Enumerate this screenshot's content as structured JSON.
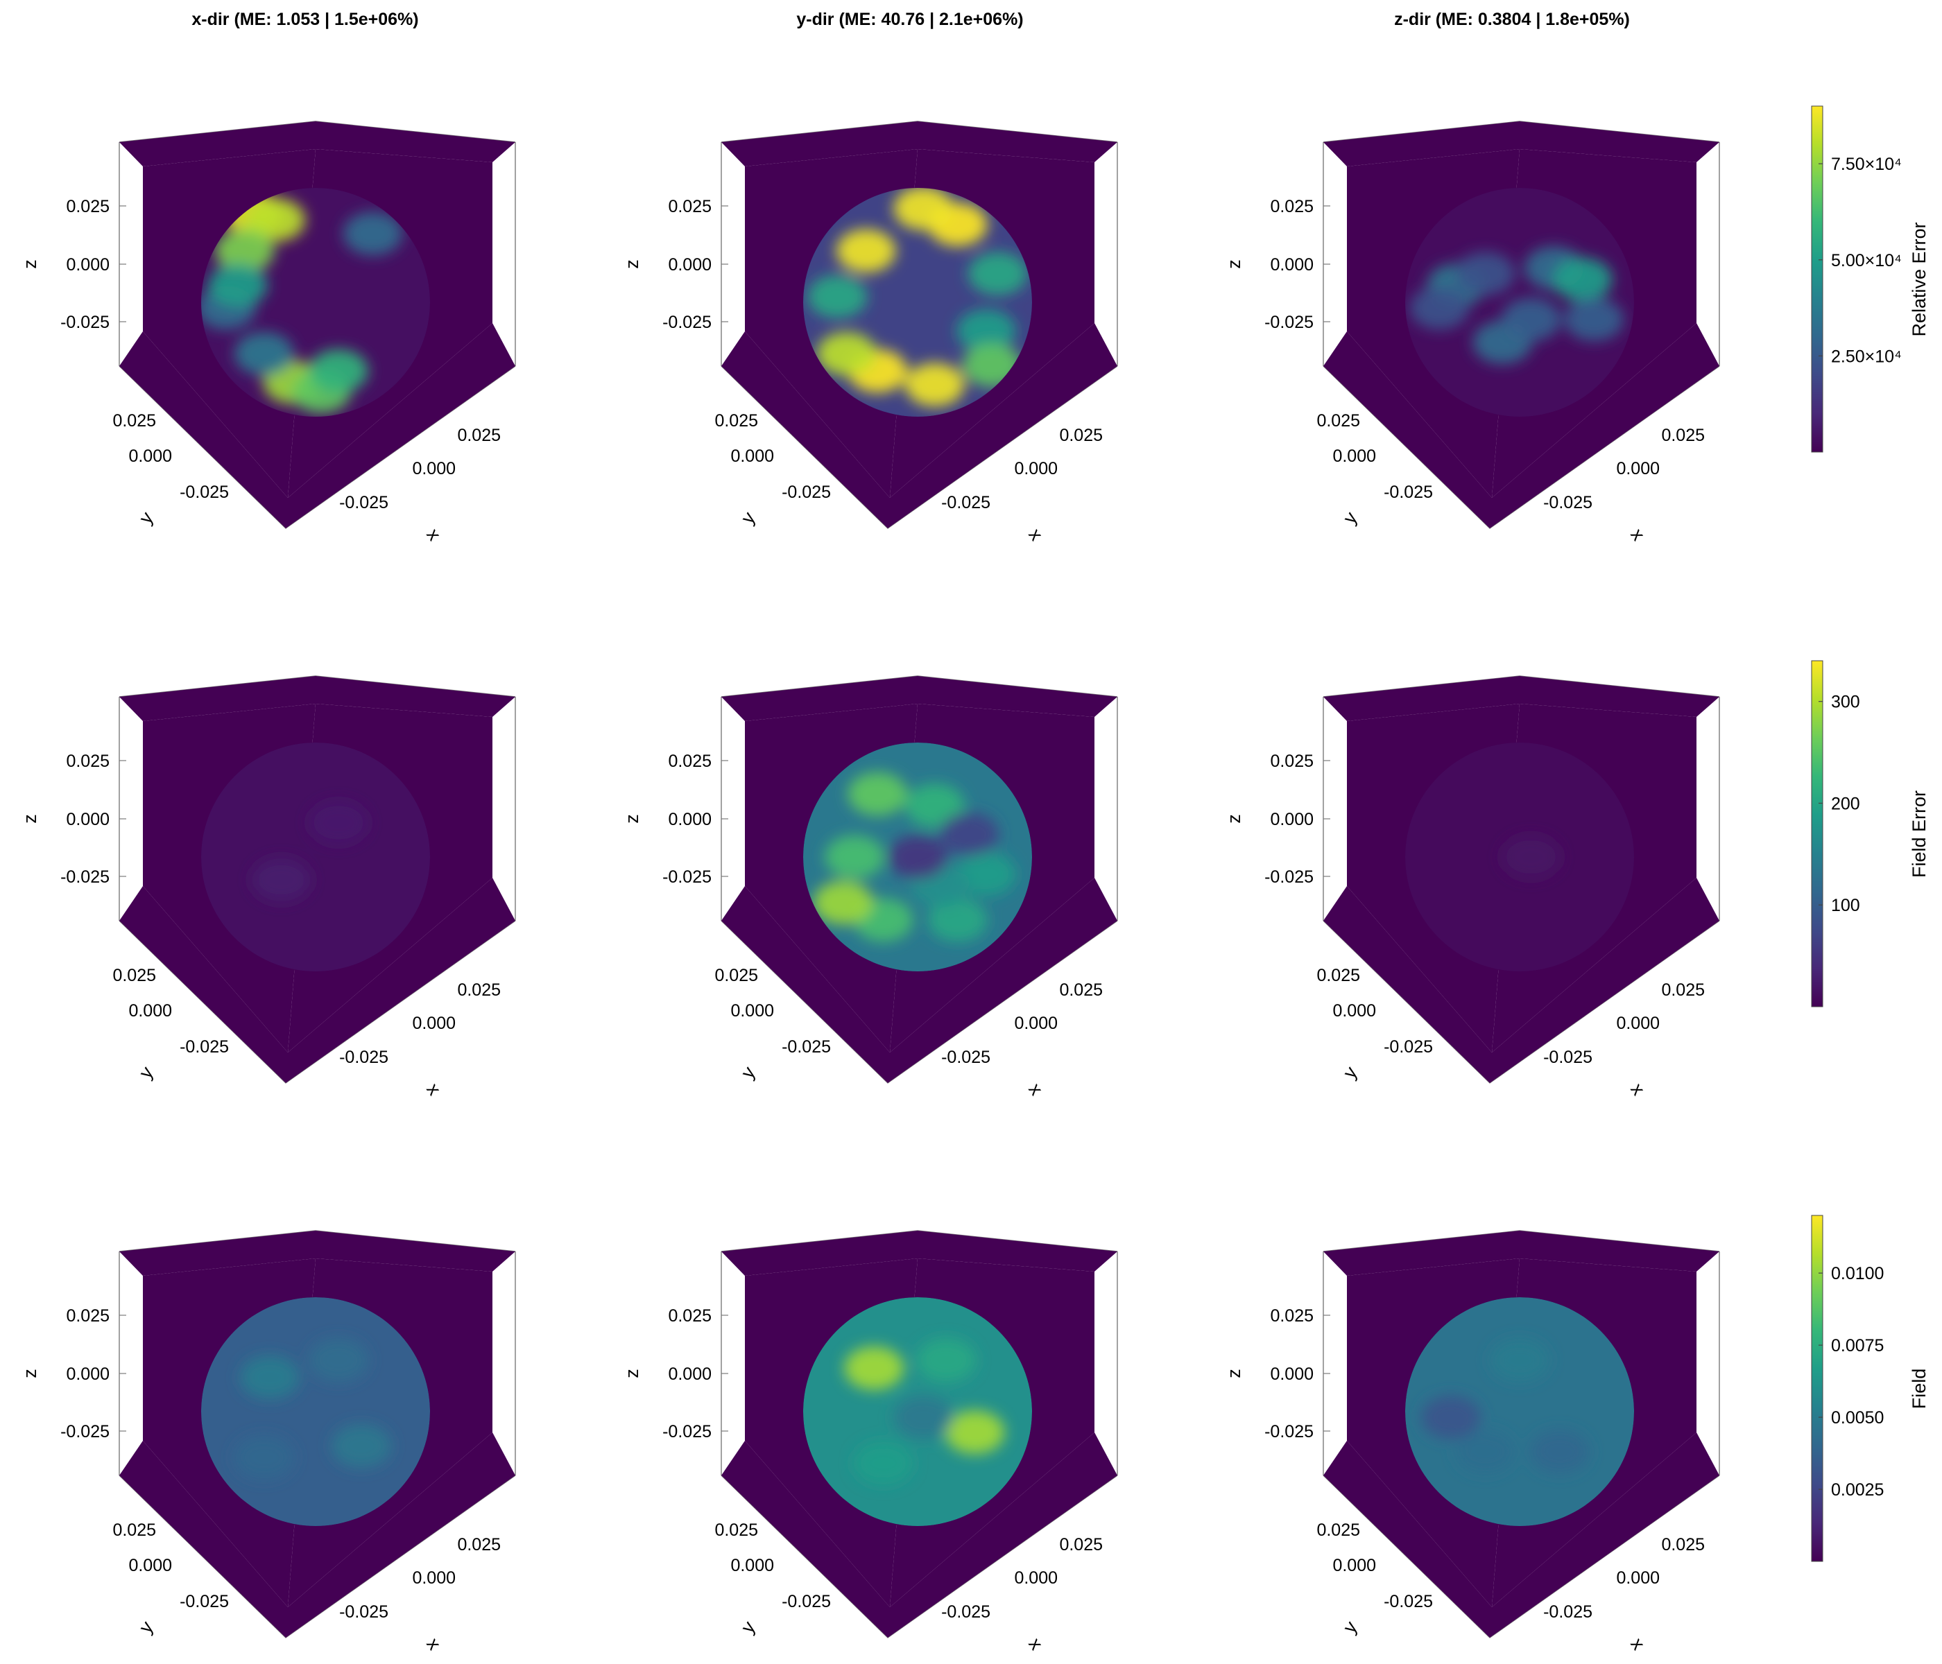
{
  "chart_data": {
    "type": "heatmap",
    "subtype": "3d-volume-grid",
    "columns": [
      {
        "direction": "x-dir",
        "title": "x-dir (ME: 1.053 | 1.5e+06%)"
      },
      {
        "direction": "y-dir",
        "title": "y-dir (ME: 40.76 | 2.1e+06%)"
      },
      {
        "direction": "z-dir",
        "title": "z-dir (ME: 0.3804 | 1.8e+05%)"
      }
    ],
    "rows": [
      {
        "quantity": "Relative Error",
        "colorbar": {
          "label": "Relative Error",
          "range": [
            0,
            90000
          ],
          "ticks": [
            {
              "value": 25000,
              "label": "2.50×10⁴"
            },
            {
              "value": 50000,
              "label": "5.00×10⁴"
            },
            {
              "value": 75000,
              "label": "7.50×10⁴"
            }
          ]
        }
      },
      {
        "quantity": "Field Error",
        "colorbar": {
          "label": "Field Error",
          "range": [
            0,
            340
          ],
          "ticks": [
            {
              "value": 100,
              "label": "100"
            },
            {
              "value": 200,
              "label": "200"
            },
            {
              "value": 300,
              "label": "300"
            }
          ]
        }
      },
      {
        "quantity": "Field",
        "colorbar": {
          "label": "Field",
          "range": [
            0,
            0.012
          ],
          "ticks": [
            {
              "value": 0.0025,
              "label": "0.0025"
            },
            {
              "value": 0.005,
              "label": "0.0050"
            },
            {
              "value": 0.0075,
              "label": "0.0075"
            },
            {
              "value": 0.01,
              "label": "0.0100"
            }
          ]
        }
      }
    ],
    "axes": {
      "xlabel": "x",
      "ylabel": "y",
      "zlabel": "z",
      "x_ticks": [
        "-0.025",
        "0.000",
        "0.025"
      ],
      "y_ticks": [
        "-0.025",
        "0.000",
        "0.025"
      ],
      "z_ticks": [
        "-0.025",
        "0.000",
        "0.025"
      ],
      "range": [
        -0.05,
        0.05
      ]
    },
    "colormap": "viridis",
    "colors": {
      "background_fill": "#440154",
      "low": "#440154",
      "mid": "#21918c",
      "high": "#fde725"
    },
    "panels": [
      [
        {
          "col": "x-dir",
          "row": "Relative Error",
          "sphere_mean": 0.04,
          "hotspots": [
            {
              "u": -0.55,
              "v": -0.78,
              "level": 0.95
            },
            {
              "u": -0.35,
              "v": -0.72,
              "level": 0.9
            },
            {
              "u": -0.62,
              "v": -0.45,
              "level": 0.8
            },
            {
              "u": -0.2,
              "v": 0.7,
              "level": 0.85
            },
            {
              "u": 0.05,
              "v": 0.78,
              "level": 0.75
            },
            {
              "u": 0.2,
              "v": 0.6,
              "level": 0.65
            },
            {
              "u": -0.78,
              "v": 0.05,
              "level": 0.35
            },
            {
              "u": -0.68,
              "v": -0.15,
              "level": 0.55
            },
            {
              "u": 0.5,
              "v": -0.6,
              "level": 0.35
            },
            {
              "u": -0.45,
              "v": 0.45,
              "level": 0.4
            }
          ]
        },
        {
          "col": "y-dir",
          "row": "Relative Error",
          "sphere_mean": 0.2,
          "hotspots": [
            {
              "u": 0.35,
              "v": -0.68,
              "level": 1.0
            },
            {
              "u": 0.05,
              "v": -0.82,
              "level": 0.98
            },
            {
              "u": -0.45,
              "v": -0.45,
              "level": 0.98
            },
            {
              "u": -0.35,
              "v": 0.6,
              "level": 1.0
            },
            {
              "u": 0.15,
              "v": 0.72,
              "level": 0.98
            },
            {
              "u": -0.62,
              "v": 0.45,
              "level": 0.9
            },
            {
              "u": 0.6,
              "v": 0.25,
              "level": 0.55
            },
            {
              "u": -0.7,
              "v": -0.05,
              "level": 0.6
            },
            {
              "u": 0.7,
              "v": -0.25,
              "level": 0.6
            },
            {
              "u": 0.65,
              "v": 0.55,
              "level": 0.75
            }
          ]
        },
        {
          "col": "z-dir",
          "row": "Relative Error",
          "sphere_mean": 0.03,
          "hotspots": [
            {
              "u": -0.55,
              "v": -0.15,
              "level": 0.4
            },
            {
              "u": 0.3,
              "v": -0.3,
              "level": 0.35
            },
            {
              "u": 0.55,
              "v": -0.2,
              "level": 0.55
            },
            {
              "u": -0.15,
              "v": 0.35,
              "level": 0.35
            },
            {
              "u": 0.1,
              "v": 0.15,
              "level": 0.3
            },
            {
              "u": 0.65,
              "v": 0.15,
              "level": 0.3
            },
            {
              "u": -0.7,
              "v": 0.05,
              "level": 0.25
            },
            {
              "u": -0.3,
              "v": -0.25,
              "level": 0.25
            }
          ]
        }
      ],
      [
        {
          "col": "x-dir",
          "row": "Field Error",
          "sphere_mean": 0.04,
          "hotspots": [
            {
              "u": -0.3,
              "v": 0.2,
              "level": 0.08
            },
            {
              "u": 0.2,
              "v": -0.3,
              "level": 0.07
            }
          ]
        },
        {
          "col": "y-dir",
          "row": "Field Error",
          "sphere_mean": 0.4,
          "hotspots": [
            {
              "u": -0.35,
              "v": -0.55,
              "level": 0.75
            },
            {
              "u": -0.55,
              "v": 0.0,
              "level": 0.7
            },
            {
              "u": 0.15,
              "v": -0.45,
              "level": 0.65
            },
            {
              "u": 0.6,
              "v": 0.15,
              "level": 0.55
            },
            {
              "u": -0.3,
              "v": 0.55,
              "level": 0.7
            },
            {
              "u": 0.35,
              "v": 0.55,
              "level": 0.6
            },
            {
              "u": 0.2,
              "v": 0.25,
              "level": 0.5
            },
            {
              "u": -0.65,
              "v": 0.4,
              "level": 0.85
            },
            {
              "u": 0.0,
              "v": 0.0,
              "level": 0.15
            },
            {
              "u": 0.45,
              "v": -0.2,
              "level": 0.2
            }
          ]
        },
        {
          "col": "z-dir",
          "row": "Field Error",
          "sphere_mean": 0.025,
          "hotspots": [
            {
              "u": 0.1,
              "v": 0.0,
              "level": 0.05
            }
          ]
        }
      ],
      [
        {
          "col": "x-dir",
          "row": "Field",
          "sphere_mean": 0.3,
          "hotspots": [
            {
              "u": -0.4,
              "v": -0.3,
              "level": 0.42
            },
            {
              "u": 0.4,
              "v": 0.3,
              "level": 0.4
            },
            {
              "u": 0.2,
              "v": -0.45,
              "level": 0.35
            },
            {
              "u": -0.45,
              "v": 0.4,
              "level": 0.33
            }
          ]
        },
        {
          "col": "y-dir",
          "row": "Field",
          "sphere_mean": 0.5,
          "hotspots": [
            {
              "u": -0.38,
              "v": -0.38,
              "level": 0.86
            },
            {
              "u": 0.5,
              "v": 0.18,
              "level": 0.86
            },
            {
              "u": 0.25,
              "v": -0.45,
              "level": 0.6
            },
            {
              "u": -0.3,
              "v": 0.45,
              "level": 0.55
            },
            {
              "u": 0.05,
              "v": 0.05,
              "level": 0.4
            }
          ]
        },
        {
          "col": "z-dir",
          "row": "Field",
          "sphere_mean": 0.38,
          "hotspots": [
            {
              "u": 0.0,
              "v": -0.45,
              "level": 0.42
            },
            {
              "u": -0.3,
              "v": 0.35,
              "level": 0.36
            },
            {
              "u": 0.35,
              "v": 0.35,
              "level": 0.33
            },
            {
              "u": -0.6,
              "v": 0.05,
              "level": 0.26
            }
          ]
        }
      ]
    ]
  }
}
